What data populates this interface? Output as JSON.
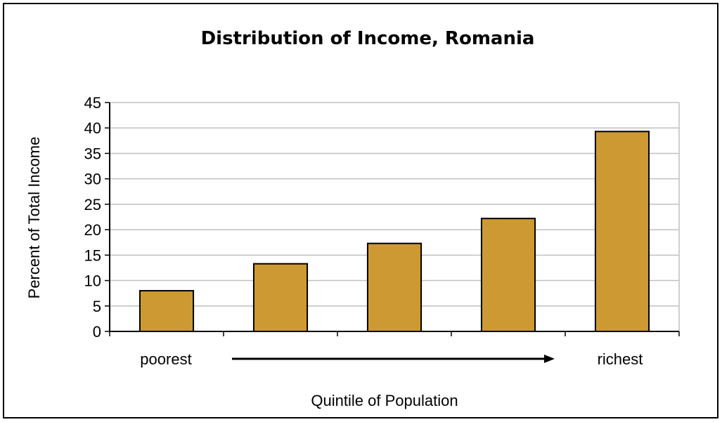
{
  "chart_data": {
    "type": "bar",
    "title": "Distribution of Income, Romania",
    "ylabel": "Percent of Total Income",
    "xlabel": "Quintile of Population",
    "categories": [
      "",
      "",
      "",
      "",
      ""
    ],
    "values": [
      8.0,
      13.3,
      17.3,
      22.2,
      39.3
    ],
    "ylim": [
      0,
      45
    ],
    "yticks": [
      0,
      5,
      10,
      15,
      20,
      25,
      30,
      35,
      40,
      45
    ],
    "x_end_labels": {
      "left": "poorest",
      "right": "richest"
    },
    "bar_color": "#cc9933",
    "grid": true
  }
}
